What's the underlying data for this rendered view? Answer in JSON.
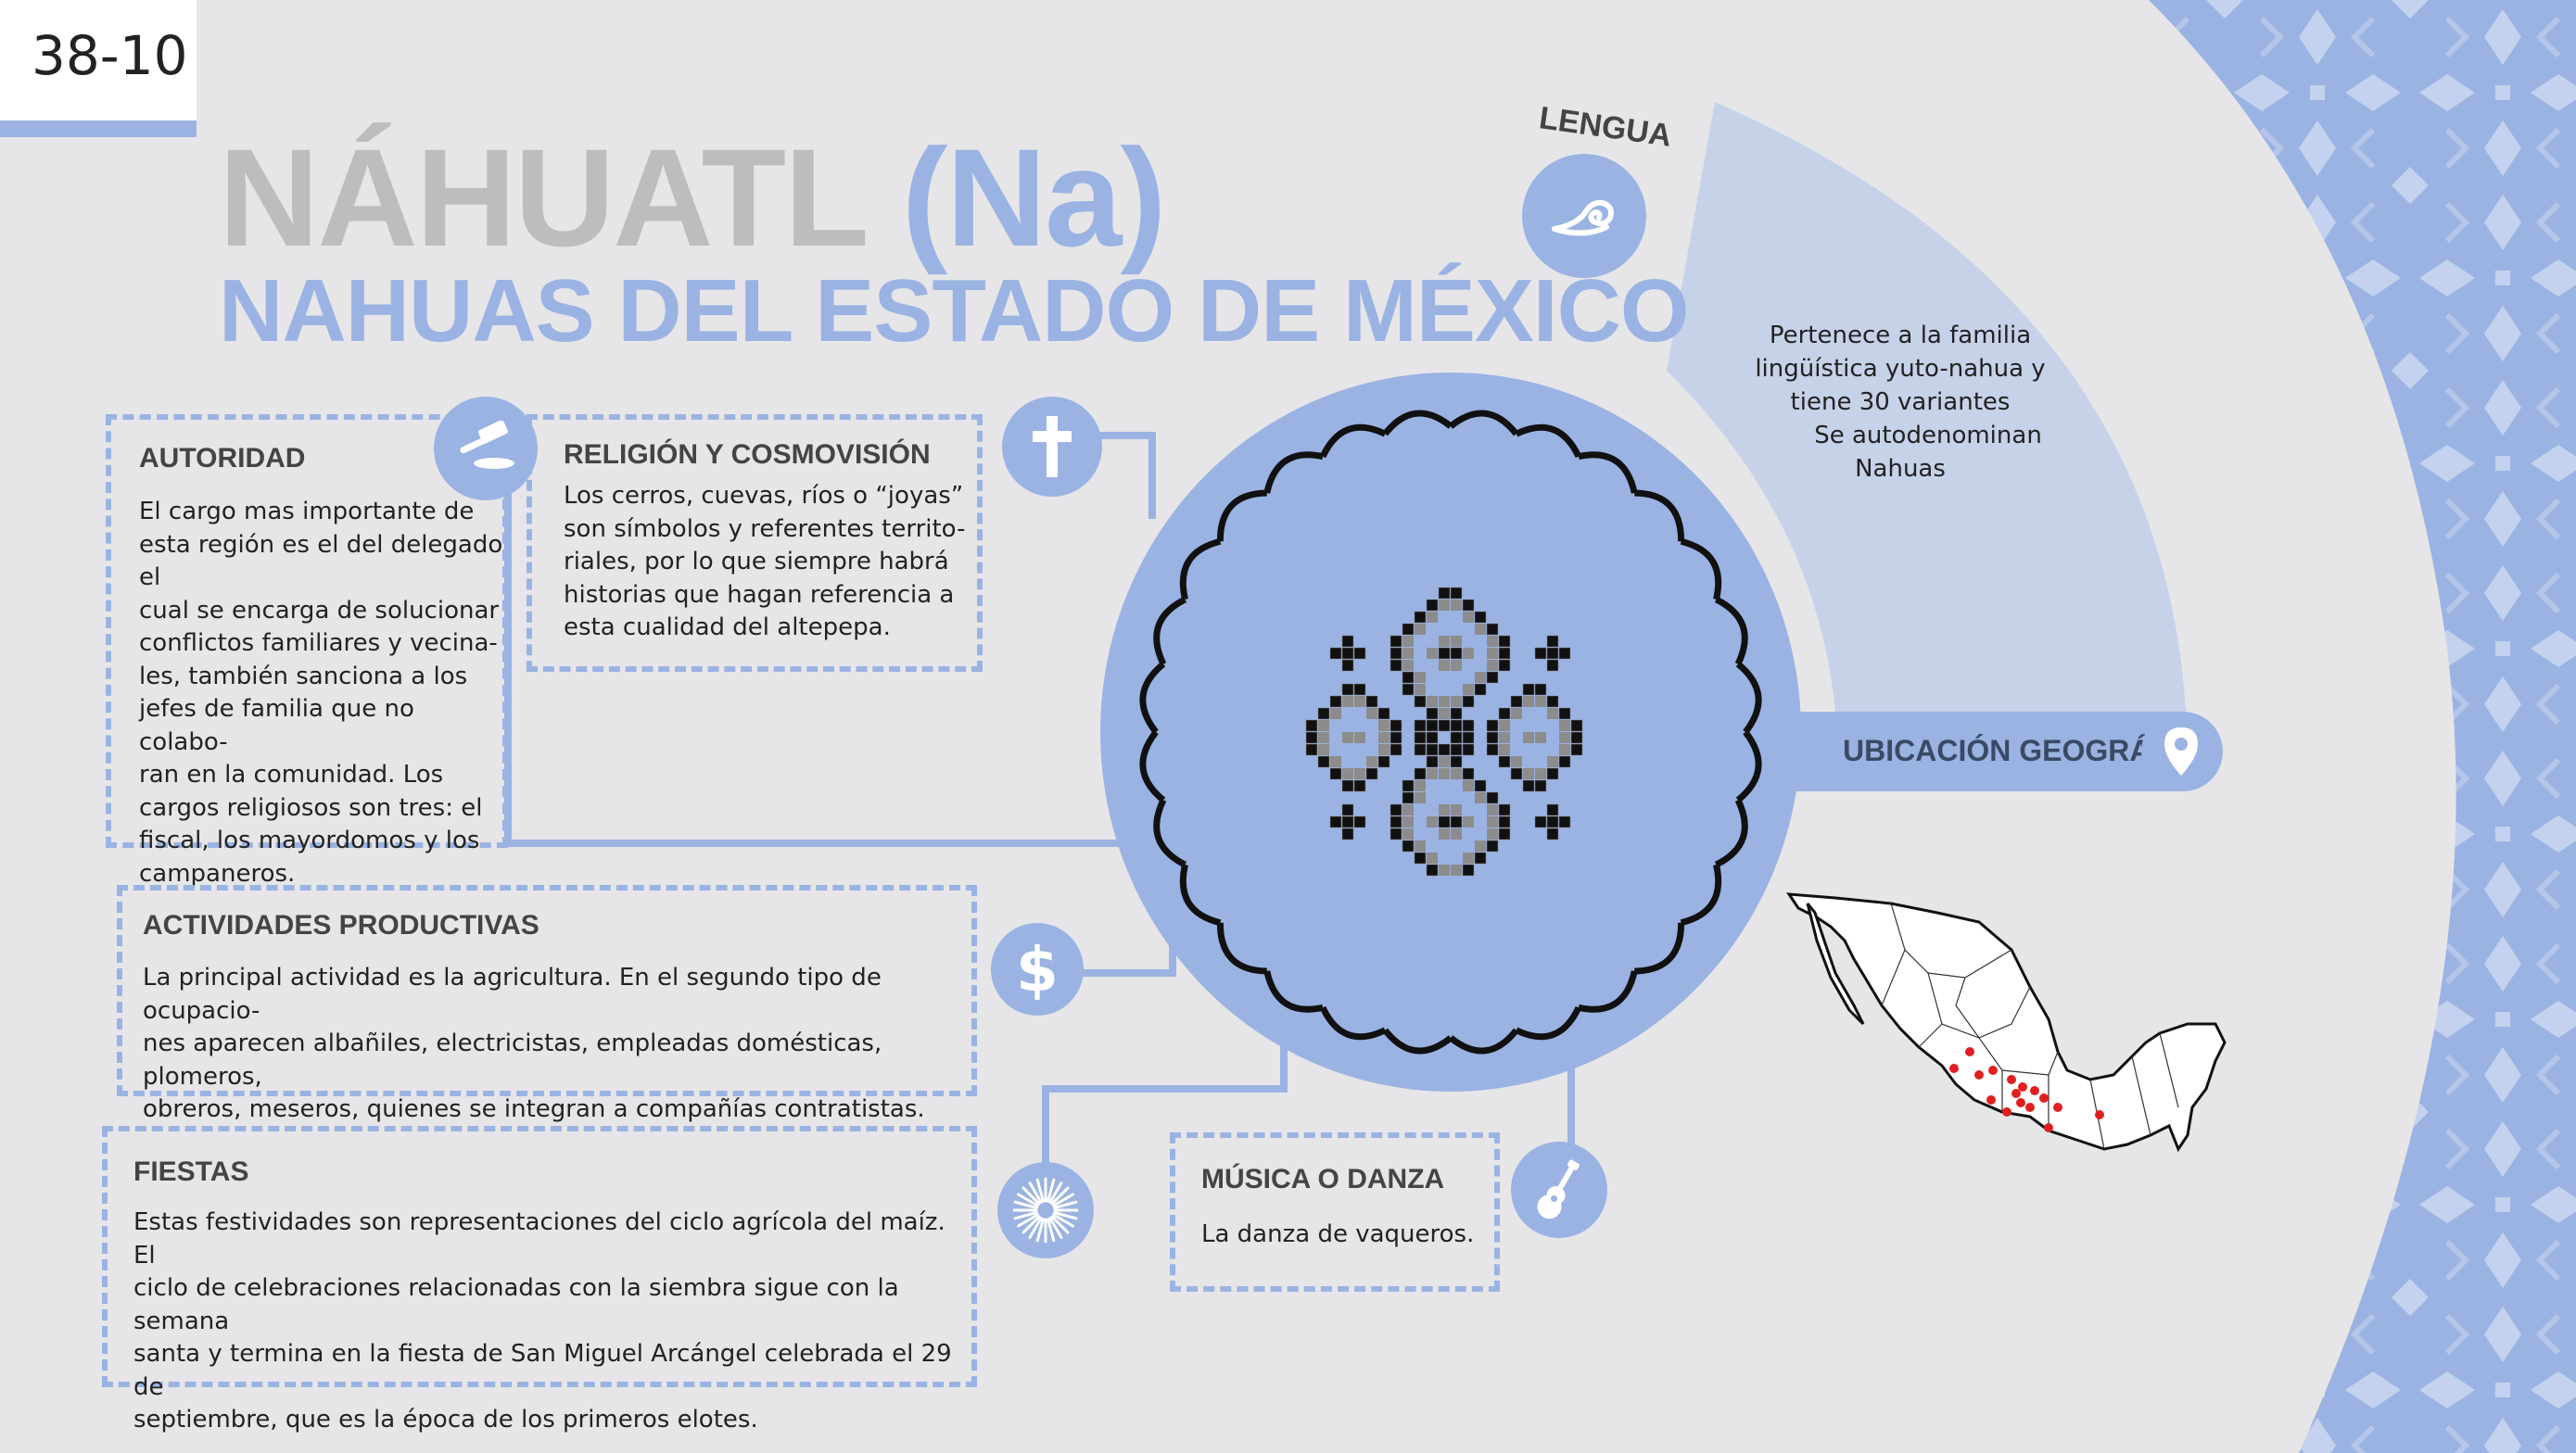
{
  "badge": "38-10",
  "title": {
    "main": "NÁHUATL",
    "code": "(Na)"
  },
  "subtitle": "NAHUAS DEL ESTADO DE MÉXICO",
  "lengua": {
    "label": "LENGUA",
    "lines": [
      "Pertenece a la familia",
      "lingüística yuto-nahua y",
      "tiene 30 variantes",
      "Se autodenominan",
      "Nahuas"
    ]
  },
  "ubicacion": {
    "label": "UBICACIÓN GEOGRÁFICA"
  },
  "autoridad": {
    "title": "AUTORIDAD",
    "lines": [
      "El cargo mas importante de",
      "esta región es el del delegado el",
      "cual se encarga de solucionar",
      "conflictos familiares y vecina-",
      "les, también sanciona a los",
      "jefes de familia que no colabo-",
      "ran en la comunidad. Los",
      "cargos religiosos son tres: el",
      "fiscal, los mayordomos y los",
      "campaneros."
    ]
  },
  "religion": {
    "title": "RELIGIÓN Y COSMOVISIÓN",
    "lines": [
      "Los cerros, cuevas, ríos o “joyas”",
      "son símbolos y referentes territo-",
      "riales, por lo que siempre habrá",
      "historias que hagan referencia a",
      "esta cualidad del altepepa."
    ]
  },
  "actividades": {
    "title": "ACTIVIDADES PRODUCTIVAS",
    "lines": [
      "La principal actividad es la agricultura. En el segundo tipo de ocupacio-",
      "nes aparecen albañiles, electricistas, empleadas domésticas, plomeros,",
      "obreros, meseros, quienes se integran a compañías contratistas."
    ]
  },
  "fiestas": {
    "title": "FIESTAS",
    "lines": [
      "Estas festividades son representaciones del ciclo agrícola del maíz. El",
      "ciclo de celebraciones relacionadas con la siembra sigue con la semana",
      "santa y termina en la fiesta de San Miguel Arcángel celebrada el 29 de",
      "septiembre, que es la época de los primeros elotes."
    ]
  },
  "musica": {
    "title": "MÚSICA O DANZA",
    "lines": [
      "La danza de vaqueros."
    ]
  },
  "colors": {
    "accent": "#9bb3e2",
    "background": "#e6e6e8",
    "title_gray": "#bdbdbd",
    "map_dot": "#e02020"
  },
  "icons": {
    "autoridad": "gavel-icon",
    "religion": "cross-icon",
    "actividades": "dollar-icon",
    "fiestas": "firework-icon",
    "musica": "guitar-icon",
    "lengua": "speech-swirl-icon",
    "ubicacion": "location-pin-icon"
  }
}
